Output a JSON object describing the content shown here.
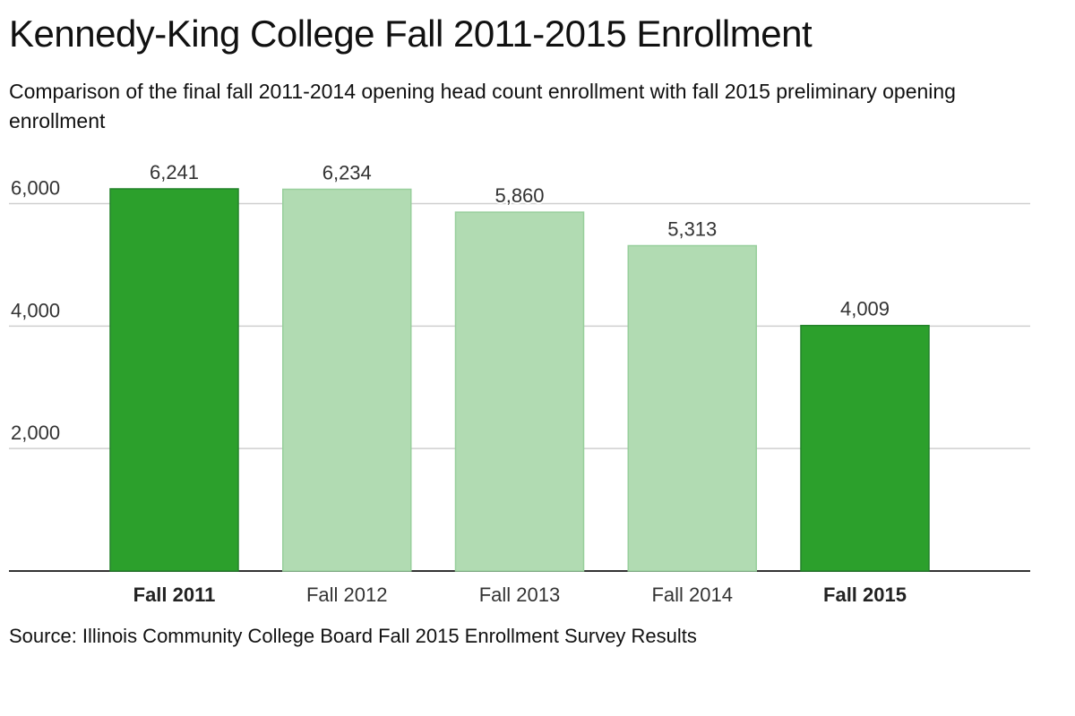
{
  "title": "Kennedy-King College Fall 2011-2015 Enrollment",
  "subtitle": "Comparison of the final fall 2011-2014 opening head count enrollment with fall 2015 preliminary opening enrollment",
  "source": "Source: Illinois Community College Board Fall 2015 Enrollment Survey Results",
  "chart_data": {
    "type": "bar",
    "categories": [
      "Fall 2011",
      "Fall 2012",
      "Fall 2013",
      "Fall 2014",
      "Fall 2015"
    ],
    "values": [
      6241,
      6234,
      5860,
      5313,
      4009
    ],
    "value_labels": [
      "6,241",
      "6,234",
      "5,860",
      "5,313",
      "4,009"
    ],
    "highlighted": [
      true,
      false,
      false,
      false,
      true
    ],
    "y_ticks": [
      2000,
      4000,
      6000
    ],
    "y_tick_labels": [
      "2,000",
      "4,000",
      "6,000"
    ],
    "ylim": [
      0,
      6241
    ],
    "grid": true,
    "colors": {
      "highlight_fill": "#2ca02c",
      "highlight_stroke": "#23822a",
      "normal_fill": "#b1dbb2",
      "normal_stroke": "#98cf9c",
      "grid": "#cfcfcf",
      "axis": "#333333"
    }
  }
}
